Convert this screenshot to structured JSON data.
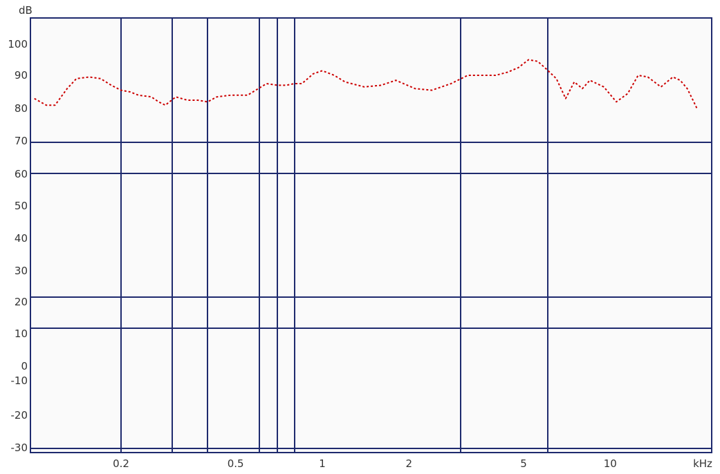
{
  "chart_data": {
    "type": "line",
    "y_unit": "dB",
    "x_unit": "kHz",
    "x_scale": "log",
    "y_tick_labels": [
      "100",
      "90",
      "80",
      "70",
      "60",
      "50",
      "40",
      "30",
      "20",
      "10",
      "0",
      "-10",
      "-20",
      "-30"
    ],
    "x_tick_labels": [
      "0.2",
      "0.5",
      "1",
      "2",
      "5",
      "10"
    ],
    "x_tick_values": [
      0.2,
      0.5,
      1,
      2,
      5,
      10
    ],
    "xlim": [
      0.1,
      20
    ],
    "series": [
      {
        "color": "#cc0000",
        "style": "dotted",
        "x": [
          0.1,
          0.11,
          0.118,
          0.13,
          0.14,
          0.155,
          0.17,
          0.185,
          0.2,
          0.215,
          0.23,
          0.255,
          0.27,
          0.285,
          0.31,
          0.34,
          0.37,
          0.4,
          0.43,
          0.48,
          0.55,
          0.6,
          0.64,
          0.7,
          0.75,
          0.8,
          0.85,
          0.93,
          1.0,
          1.1,
          1.2,
          1.4,
          1.6,
          1.8,
          2.1,
          2.4,
          2.8,
          3.2,
          3.6,
          4.0,
          4.4,
          4.8,
          5.2,
          5.6,
          6.0,
          6.5,
          7.0,
          7.5,
          8.0,
          8.5,
          9.5,
          10.5,
          11.5,
          12.5,
          13.5,
          15.0,
          16.5,
          17.5,
          18.5,
          19.5,
          20.0
        ],
        "y": [
          83,
          81,
          81,
          86,
          89,
          89.5,
          89,
          87,
          85.5,
          85,
          84,
          83.5,
          82,
          81,
          83.5,
          82.5,
          82.5,
          82,
          83.5,
          84,
          84,
          86,
          87.5,
          87,
          87,
          87.5,
          87.5,
          90.5,
          91.5,
          90,
          88,
          86.5,
          87,
          88.5,
          86,
          85.5,
          87.5,
          90,
          90,
          90,
          91,
          92.5,
          95,
          94.5,
          92,
          89,
          83,
          88,
          86,
          88.5,
          86.5,
          82,
          84.5,
          90,
          89.5,
          86.5,
          89.5,
          88.5,
          86,
          82,
          80
        ]
      }
    ]
  }
}
